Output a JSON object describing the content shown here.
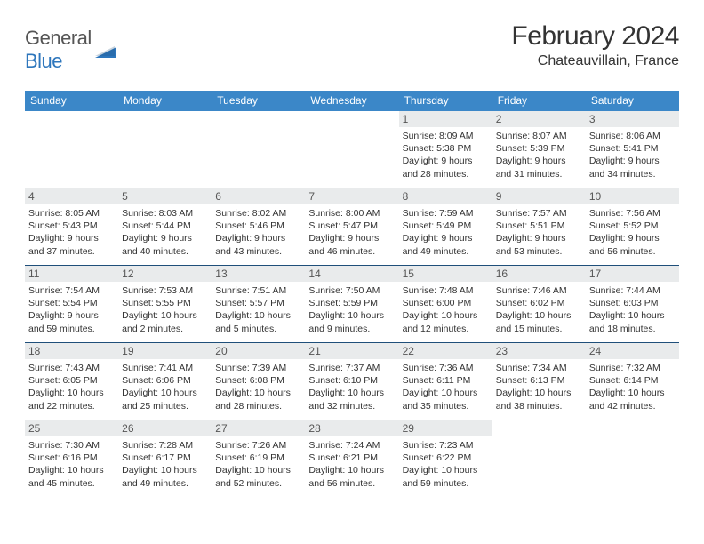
{
  "brand": {
    "text_a": "General",
    "text_b": "Blue"
  },
  "title": "February 2024",
  "location": "Chateauvillain, France",
  "header_bg": "#3b87c8",
  "daynum_bg": "#e9ebec",
  "week_border": "#1f4f7a",
  "weekdays": [
    "Sunday",
    "Monday",
    "Tuesday",
    "Wednesday",
    "Thursday",
    "Friday",
    "Saturday"
  ],
  "weeks": [
    [
      {
        "empty": true
      },
      {
        "empty": true
      },
      {
        "empty": true
      },
      {
        "empty": true
      },
      {
        "n": "1",
        "sunrise": "8:09 AM",
        "sunset": "5:38 PM",
        "dl": "9 hours and 28 minutes."
      },
      {
        "n": "2",
        "sunrise": "8:07 AM",
        "sunset": "5:39 PM",
        "dl": "9 hours and 31 minutes."
      },
      {
        "n": "3",
        "sunrise": "8:06 AM",
        "sunset": "5:41 PM",
        "dl": "9 hours and 34 minutes."
      }
    ],
    [
      {
        "n": "4",
        "sunrise": "8:05 AM",
        "sunset": "5:43 PM",
        "dl": "9 hours and 37 minutes."
      },
      {
        "n": "5",
        "sunrise": "8:03 AM",
        "sunset": "5:44 PM",
        "dl": "9 hours and 40 minutes."
      },
      {
        "n": "6",
        "sunrise": "8:02 AM",
        "sunset": "5:46 PM",
        "dl": "9 hours and 43 minutes."
      },
      {
        "n": "7",
        "sunrise": "8:00 AM",
        "sunset": "5:47 PM",
        "dl": "9 hours and 46 minutes."
      },
      {
        "n": "8",
        "sunrise": "7:59 AM",
        "sunset": "5:49 PM",
        "dl": "9 hours and 49 minutes."
      },
      {
        "n": "9",
        "sunrise": "7:57 AM",
        "sunset": "5:51 PM",
        "dl": "9 hours and 53 minutes."
      },
      {
        "n": "10",
        "sunrise": "7:56 AM",
        "sunset": "5:52 PM",
        "dl": "9 hours and 56 minutes."
      }
    ],
    [
      {
        "n": "11",
        "sunrise": "7:54 AM",
        "sunset": "5:54 PM",
        "dl": "9 hours and 59 minutes."
      },
      {
        "n": "12",
        "sunrise": "7:53 AM",
        "sunset": "5:55 PM",
        "dl": "10 hours and 2 minutes."
      },
      {
        "n": "13",
        "sunrise": "7:51 AM",
        "sunset": "5:57 PM",
        "dl": "10 hours and 5 minutes."
      },
      {
        "n": "14",
        "sunrise": "7:50 AM",
        "sunset": "5:59 PM",
        "dl": "10 hours and 9 minutes."
      },
      {
        "n": "15",
        "sunrise": "7:48 AM",
        "sunset": "6:00 PM",
        "dl": "10 hours and 12 minutes."
      },
      {
        "n": "16",
        "sunrise": "7:46 AM",
        "sunset": "6:02 PM",
        "dl": "10 hours and 15 minutes."
      },
      {
        "n": "17",
        "sunrise": "7:44 AM",
        "sunset": "6:03 PM",
        "dl": "10 hours and 18 minutes."
      }
    ],
    [
      {
        "n": "18",
        "sunrise": "7:43 AM",
        "sunset": "6:05 PM",
        "dl": "10 hours and 22 minutes."
      },
      {
        "n": "19",
        "sunrise": "7:41 AM",
        "sunset": "6:06 PM",
        "dl": "10 hours and 25 minutes."
      },
      {
        "n": "20",
        "sunrise": "7:39 AM",
        "sunset": "6:08 PM",
        "dl": "10 hours and 28 minutes."
      },
      {
        "n": "21",
        "sunrise": "7:37 AM",
        "sunset": "6:10 PM",
        "dl": "10 hours and 32 minutes."
      },
      {
        "n": "22",
        "sunrise": "7:36 AM",
        "sunset": "6:11 PM",
        "dl": "10 hours and 35 minutes."
      },
      {
        "n": "23",
        "sunrise": "7:34 AM",
        "sunset": "6:13 PM",
        "dl": "10 hours and 38 minutes."
      },
      {
        "n": "24",
        "sunrise": "7:32 AM",
        "sunset": "6:14 PM",
        "dl": "10 hours and 42 minutes."
      }
    ],
    [
      {
        "n": "25",
        "sunrise": "7:30 AM",
        "sunset": "6:16 PM",
        "dl": "10 hours and 45 minutes."
      },
      {
        "n": "26",
        "sunrise": "7:28 AM",
        "sunset": "6:17 PM",
        "dl": "10 hours and 49 minutes."
      },
      {
        "n": "27",
        "sunrise": "7:26 AM",
        "sunset": "6:19 PM",
        "dl": "10 hours and 52 minutes."
      },
      {
        "n": "28",
        "sunrise": "7:24 AM",
        "sunset": "6:21 PM",
        "dl": "10 hours and 56 minutes."
      },
      {
        "n": "29",
        "sunrise": "7:23 AM",
        "sunset": "6:22 PM",
        "dl": "10 hours and 59 minutes."
      },
      {
        "empty": true
      },
      {
        "empty": true
      }
    ]
  ]
}
